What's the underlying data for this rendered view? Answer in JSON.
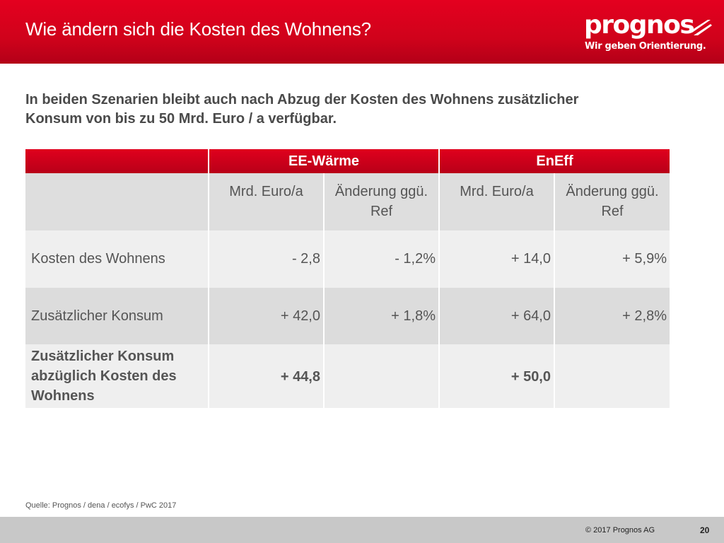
{
  "header": {
    "title": "Wie ändern sich die Kosten des Wohnens?",
    "logo_text": "prognos",
    "logo_tagline": "Wir geben Orientierung.",
    "brand_color": "#d0021b"
  },
  "subtitle": "In beiden Szenarien bleibt auch nach Abzug der Kosten des Wohnens zusätzlicher Konsum von bis zu 50 Mrd. Euro / a verfügbar.",
  "table": {
    "groups": [
      "EE-Wärme",
      "EnEff"
    ],
    "subheaders": [
      "Mrd. Euro/a",
      "Änderung ggü. Ref",
      "Mrd. Euro/a",
      "Änderung ggü. Ref"
    ],
    "rows": [
      {
        "label": "Kosten des Wohnens",
        "values": [
          "- 2,8",
          "- 1,2%",
          "+ 14,0",
          "+ 5,9%"
        ]
      },
      {
        "label": "Zusätzlicher Konsum",
        "values": [
          "+ 42,0",
          "+ 1,8%",
          "+ 64,0",
          "+ 2,8%"
        ]
      },
      {
        "label": "Zusätzlicher Konsum abzüglich Kosten des Wohnens",
        "values": [
          "+ 44,8",
          "",
          "+ 50,0",
          ""
        ]
      }
    ]
  },
  "footer": {
    "source": "Quelle: Prognos / dena / ecofys / PwC 2017",
    "copyright": "© 2017 Prognos AG",
    "page_number": "20"
  }
}
